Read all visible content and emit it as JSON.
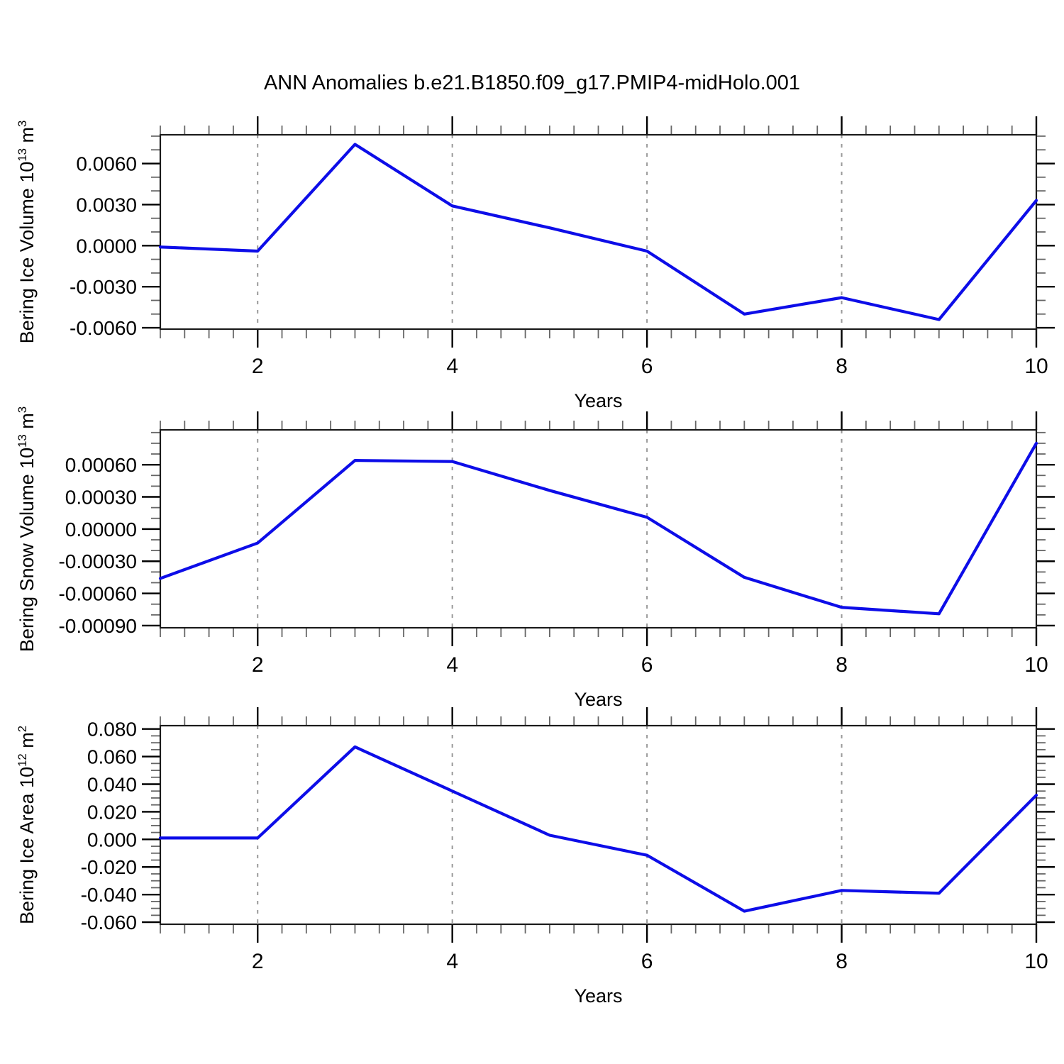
{
  "page": {
    "title": "ANN Anomalies b.e21.B1850.f09_g17.PMIP4-midHolo.001",
    "background": "#ffffff"
  },
  "colors": {
    "line": "#0d0de8",
    "grid": "#999999",
    "frame": "#1a1a1a",
    "major_tick": "#000000",
    "minor_tick": "#666666",
    "text": "#000000"
  },
  "chart_data": [
    {
      "type": "line",
      "panel": "top",
      "ylabel": "Bering Ice Volume 10^13 m^3",
      "ylabel_parts": [
        [
          "t",
          "Bering Ice Volume 10"
        ],
        [
          "sup",
          "13"
        ],
        [
          "t",
          " m"
        ],
        [
          "sup",
          "3"
        ]
      ],
      "xlabel": "Years",
      "x": [
        1,
        2,
        3,
        4,
        5,
        6,
        7,
        8,
        9,
        10
      ],
      "values": [
        -0.0001,
        -0.0004,
        0.0074,
        0.0029,
        0.0013,
        -0.0004,
        -0.005,
        -0.0038,
        -0.0054,
        0.0033
      ],
      "xlim": [
        1,
        10
      ],
      "ylim": [
        -0.0061,
        0.0081
      ],
      "yticks_major": [
        0.006,
        0.003,
        0.0,
        -0.003,
        -0.006
      ],
      "ytick_labels": [
        "0.0060",
        "0.0030",
        "0.0000",
        "-0.0030",
        "-0.0060"
      ],
      "ytick_minor_step": 0.001,
      "xticks_labeled": [
        2,
        4,
        6,
        8,
        10
      ],
      "xtick_labels": [
        "2",
        "4",
        "6",
        "8",
        "10"
      ],
      "xtick_minor_step": 0.25,
      "grid_x": [
        2,
        4,
        6,
        8
      ],
      "grid_style": "dashed",
      "legend": "none"
    },
    {
      "type": "line",
      "panel": "middle",
      "ylabel": "Bering Snow Volume 10^13 m^3",
      "ylabel_parts": [
        [
          "t",
          "Bering Snow Volume 10"
        ],
        [
          "sup",
          "13"
        ],
        [
          "t",
          " m"
        ],
        [
          "sup",
          "3"
        ]
      ],
      "xlabel": "Years",
      "x": [
        1,
        2,
        3,
        4,
        5,
        6,
        7,
        8,
        9,
        10
      ],
      "values": [
        -0.00046,
        -0.00013,
        0.00064,
        0.00063,
        0.00036,
        0.00011,
        -0.00045,
        -0.00073,
        -0.00079,
        0.0008
      ],
      "xlim": [
        1,
        10
      ],
      "ylim": [
        -0.00092,
        0.000925
      ],
      "yticks_major": [
        0.0006,
        0.0003,
        0.0,
        -0.0003,
        -0.0006,
        -0.0009
      ],
      "ytick_labels": [
        "0.00060",
        "0.00030",
        "0.00000",
        "-0.00030",
        "-0.00060",
        "-0.00090"
      ],
      "ytick_minor_step": 0.0001,
      "xticks_labeled": [
        2,
        4,
        6,
        8,
        10
      ],
      "xtick_labels": [
        "2",
        "4",
        "6",
        "8",
        "10"
      ],
      "xtick_minor_step": 0.25,
      "grid_x": [
        2,
        4,
        6,
        8
      ],
      "grid_style": "dashed",
      "legend": "none"
    },
    {
      "type": "line",
      "panel": "bottom",
      "ylabel": "Bering Ice Area 10^12 m^2",
      "ylabel_parts": [
        [
          "t",
          "Bering Ice Area 10"
        ],
        [
          "sup",
          "12"
        ],
        [
          "t",
          " m"
        ],
        [
          "sup",
          "2"
        ]
      ],
      "xlabel": "Years",
      "x": [
        1,
        2,
        3,
        4,
        5,
        6,
        7,
        8,
        9,
        10
      ],
      "values": [
        0.001,
        0.001,
        0.067,
        0.035,
        0.003,
        -0.0115,
        -0.052,
        -0.037,
        -0.039,
        0.032
      ],
      "xlim": [
        1,
        10
      ],
      "ylim": [
        -0.0615,
        0.0824
      ],
      "yticks_major": [
        0.08,
        0.06,
        0.04,
        0.02,
        0.0,
        -0.02,
        -0.04,
        -0.06
      ],
      "ytick_labels": [
        "0.080",
        "0.060",
        "0.040",
        "0.020",
        "0.000",
        "-0.020",
        "-0.040",
        "-0.060"
      ],
      "ytick_minor_step": 0.005,
      "xticks_labeled": [
        2,
        4,
        6,
        8,
        10
      ],
      "xtick_labels": [
        "2",
        "4",
        "6",
        "8",
        "10"
      ],
      "xtick_minor_step": 0.25,
      "grid_x": [
        2,
        4,
        6,
        8
      ],
      "grid_style": "dashed",
      "legend": "none"
    }
  ]
}
